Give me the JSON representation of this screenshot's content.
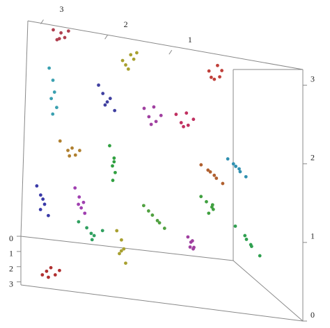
{
  "chart_data": {
    "type": "scatter3d",
    "xlim": [
      0,
      3.2
    ],
    "ylim": [
      0,
      3.2
    ],
    "zlim": [
      0,
      3.2
    ],
    "xticks": [
      1,
      2,
      3
    ],
    "yticks": [
      0,
      1,
      2,
      3
    ],
    "zticks": [
      0,
      1,
      2,
      3
    ],
    "series": [
      {
        "color": "#b04050",
        "x": [
          2.6,
          2.65,
          2.7,
          2.75,
          2.8,
          2.72
        ],
        "y": [
          1.5,
          1.6,
          1.7,
          1.55,
          1.65,
          1.6
        ],
        "z": [
          3.15,
          3.05,
          3.1,
          3.0,
          3.12,
          3.02
        ]
      },
      {
        "color": "#a8a030",
        "x": [
          1.7,
          1.75,
          1.8,
          1.85,
          1.9,
          1.82
        ],
        "y": [
          1.5,
          1.6,
          1.7,
          1.55,
          1.65,
          1.6
        ],
        "z": [
          3.05,
          2.95,
          3.0,
          2.85,
          2.9,
          2.8
        ]
      },
      {
        "color": "#c0403a",
        "x": [
          0.58,
          0.63,
          0.68,
          0.73,
          0.78,
          0.7
        ],
        "y": [
          1.5,
          1.6,
          1.7,
          1.55,
          1.65,
          1.6
        ],
        "z": [
          3.05,
          2.95,
          3.1,
          2.92,
          3.0,
          2.9
        ]
      },
      {
        "color": "#3aa0b0",
        "x": [
          2.85,
          2.8,
          2.78,
          2.82,
          2.75,
          2.8
        ],
        "y": [
          1.5,
          1.6,
          1.7,
          1.55,
          1.65,
          1.6
        ],
        "z": [
          2.6,
          2.45,
          2.3,
          2.2,
          2.1,
          2.0
        ]
      },
      {
        "color": "#4040a0",
        "x": [
          2.2,
          2.15,
          2.1,
          2.05,
          2.0,
          2.12
        ],
        "y": [
          1.5,
          1.6,
          1.7,
          1.55,
          1.65,
          1.6
        ],
        "z": [
          2.5,
          2.4,
          2.3,
          2.35,
          2.2,
          2.25
        ]
      },
      {
        "color": "#a040a0",
        "x": [
          1.6,
          1.55,
          1.5,
          1.45,
          1.4,
          1.52
        ],
        "y": [
          1.5,
          1.6,
          1.7,
          1.55,
          1.65,
          1.6
        ],
        "z": [
          2.3,
          2.2,
          2.35,
          2.15,
          2.25,
          2.1
        ]
      },
      {
        "color": "#c03060",
        "x": [
          1.18,
          1.13,
          1.08,
          1.03,
          0.98,
          1.1
        ],
        "y": [
          1.5,
          1.6,
          1.7,
          1.55,
          1.65,
          1.6
        ],
        "z": [
          2.3,
          2.2,
          2.35,
          2.18,
          2.28,
          2.15
        ]
      },
      {
        "color": "#b08030",
        "x": [
          2.7,
          2.6,
          2.55,
          2.5,
          2.45,
          2.58
        ],
        "y": [
          1.5,
          1.6,
          1.7,
          1.55,
          1.65,
          1.6
        ],
        "z": [
          1.65,
          1.55,
          1.6,
          1.5,
          1.58,
          1.48
        ]
      },
      {
        "color": "#30a040",
        "x": [
          2.05,
          2.0,
          2.03,
          1.98,
          2.02,
          2.0
        ],
        "y": [
          1.5,
          1.6,
          1.7,
          1.55,
          1.65,
          1.6
        ],
        "z": [
          1.7,
          1.55,
          1.45,
          1.35,
          1.25,
          1.5
        ]
      },
      {
        "color": "#3a3aa8",
        "x": [
          3.0,
          2.95,
          2.9,
          2.95,
          2.85,
          2.92
        ],
        "y": [
          1.5,
          1.6,
          1.7,
          1.55,
          1.65,
          1.6
        ],
        "z": [
          1.0,
          0.9,
          0.8,
          0.7,
          0.65,
          0.85
        ]
      },
      {
        "color": "#a040b0",
        "x": [
          2.5,
          2.45,
          2.4,
          2.42,
          2.38,
          2.46
        ],
        "y": [
          1.5,
          1.6,
          1.7,
          1.55,
          1.65,
          1.6
        ],
        "z": [
          1.05,
          0.95,
          0.9,
          0.8,
          0.75,
          0.85
        ]
      },
      {
        "color": "#30a060",
        "x": [
          2.45,
          2.35,
          2.3,
          2.25,
          2.15,
          2.28
        ],
        "y": [
          1.5,
          1.6,
          1.7,
          1.55,
          1.65,
          1.6
        ],
        "z": [
          0.6,
          0.55,
          0.5,
          0.45,
          0.55,
          0.4
        ]
      },
      {
        "color": "#a8a030",
        "x": [
          1.95,
          1.9,
          1.88,
          1.92,
          1.85,
          1.9
        ],
        "y": [
          1.5,
          1.6,
          1.7,
          1.55,
          1.65,
          1.6
        ],
        "z": [
          0.55,
          0.45,
          0.35,
          0.25,
          0.15,
          0.3
        ]
      },
      {
        "color": "#50a040",
        "x": [
          1.6,
          1.55,
          1.45,
          1.4,
          1.35,
          1.5
        ],
        "y": [
          1.5,
          1.6,
          1.7,
          1.55,
          1.65,
          1.6
        ],
        "z": [
          0.95,
          0.9,
          0.8,
          0.75,
          0.7,
          0.85
        ]
      },
      {
        "color": "#a040a0",
        "x": [
          1.02,
          1.0,
          0.98,
          0.96,
          0.99,
          1.01
        ],
        "y": [
          1.5,
          1.6,
          1.7,
          1.55,
          1.65,
          1.6
        ],
        "z": [
          0.6,
          0.55,
          0.5,
          0.45,
          0.58,
          0.48
        ]
      },
      {
        "color": "#b06030",
        "x": [
          0.85,
          0.78,
          0.72,
          0.66,
          0.6,
          0.75
        ],
        "y": [
          1.5,
          1.6,
          1.7,
          1.55,
          1.65,
          1.6
        ],
        "z": [
          1.65,
          1.6,
          1.55,
          1.5,
          1.45,
          1.58
        ]
      },
      {
        "color": "#3090b0",
        "x": [
          0.5,
          0.45,
          0.4,
          0.35,
          0.3,
          0.42
        ],
        "y": [
          1.5,
          1.6,
          1.7,
          1.55,
          1.65,
          1.6
        ],
        "z": [
          1.8,
          1.75,
          1.7,
          1.65,
          1.6,
          1.72
        ]
      },
      {
        "color": "#40a040",
        "x": [
          0.85,
          0.8,
          0.75,
          0.7,
          0.78,
          0.72
        ],
        "y": [
          1.5,
          1.6,
          1.7,
          1.55,
          1.65,
          1.6
        ],
        "z": [
          1.2,
          1.15,
          1.1,
          1.05,
          1.0,
          1.12
        ]
      },
      {
        "color": "#30a050",
        "x": [
          0.4,
          0.3,
          0.25,
          0.2,
          0.12,
          0.28
        ],
        "y": [
          1.5,
          1.6,
          1.7,
          1.55,
          1.65,
          1.6
        ],
        "z": [
          0.85,
          0.75,
          0.65,
          0.6,
          0.5,
          0.7
        ]
      },
      {
        "color": "#b03030",
        "x": [
          2.95,
          2.9,
          2.85,
          2.8,
          2.75,
          2.88
        ],
        "y": [
          2.9,
          2.9,
          2.9,
          2.9,
          2.9,
          2.9
        ],
        "z": [
          0.1,
          0.15,
          0.2,
          0.12,
          0.18,
          0.08
        ]
      }
    ]
  }
}
